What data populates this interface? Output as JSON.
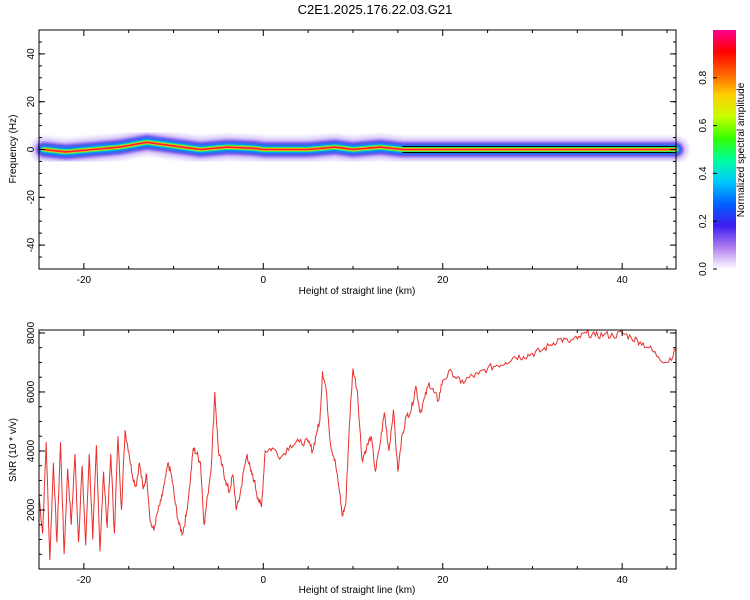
{
  "title": "C2E1.2025.176.22.03.G21",
  "chart_data": [
    {
      "type": "heatmap",
      "xlabel": "Height of straight line (km)",
      "ylabel": "Frequency (Hz)",
      "xlim": [
        -25,
        46
      ],
      "ylim": [
        -50,
        50
      ],
      "x_ticks": [
        -20,
        0,
        20,
        40
      ],
      "y_ticks": [
        -40,
        -20,
        0,
        20,
        40
      ],
      "colorbar": {
        "label": "Normalized spectral amplitude",
        "range": [
          0,
          1
        ],
        "ticks": [
          "0.0",
          "0.2",
          "0.4",
          "0.6",
          "0.8"
        ],
        "colors": [
          "#ffffff",
          "#b07cf0",
          "#3d1cf0",
          "#0060ff",
          "#00c8ff",
          "#00ffa0",
          "#30ff00",
          "#c8ff00",
          "#ffd000",
          "#ff6000",
          "#ff0000",
          "#ff0090"
        ]
      },
      "band": {
        "center_freq_hz": [
          [
            -24.5,
            0
          ],
          [
            -22,
            -1
          ],
          [
            -19,
            0
          ],
          [
            -16,
            1
          ],
          [
            -13,
            3
          ],
          [
            -10,
            1.5
          ],
          [
            -7,
            0
          ],
          [
            -4,
            1
          ],
          [
            -1,
            0.5
          ],
          [
            0,
            0
          ],
          [
            5,
            0
          ],
          [
            8,
            1
          ],
          [
            10,
            0
          ],
          [
            13,
            1
          ],
          [
            15.5,
            0
          ],
          [
            46,
            0
          ]
        ]
      }
    },
    {
      "type": "line",
      "xlabel": "Height of straight line (km)",
      "ylabel": "SNR (10 * v/v)",
      "xlim": [
        -25,
        46
      ],
      "ylim": [
        0,
        8100
      ],
      "x_ticks": [
        -20,
        0,
        20,
        40
      ],
      "y_ticks": [
        2000,
        4000,
        6000,
        8000
      ],
      "series": [
        {
          "color": "#e8312f",
          "x": [
            -25,
            -24.6,
            -24.2,
            -23.8,
            -23.4,
            -23,
            -22.6,
            -22.2,
            -21.8,
            -21.4,
            -21,
            -20.6,
            -20.2,
            -19.8,
            -19.4,
            -19,
            -18.6,
            -18.2,
            -17.8,
            -17.4,
            -17,
            -16.6,
            -16.2,
            -15.8,
            -15.4,
            -15,
            -14.6,
            -14.2,
            -13.8,
            -13.4,
            -13,
            -12.6,
            -12.2,
            -11.8,
            -11.4,
            -11,
            -10.6,
            -10.2,
            -9.8,
            -9.4,
            -9,
            -8.6,
            -8.2,
            -7.8,
            -7.4,
            -7,
            -6.6,
            -6.2,
            -5.8,
            -5.4,
            -5,
            -4.6,
            -4.2,
            -3.8,
            -3.4,
            -3,
            -2.6,
            -2.2,
            -1.8,
            -1.4,
            -1,
            -0.6,
            -0.2,
            0.2,
            1,
            2,
            3,
            4,
            5,
            5.5,
            6,
            6.3,
            6.6,
            7,
            7.5,
            8,
            8.5,
            8.8,
            9.2,
            9.6,
            10,
            10.5,
            11,
            11.5,
            12,
            12.5,
            13,
            13.5,
            14,
            14.5,
            15,
            15.5,
            16,
            16.5,
            17,
            17.5,
            18,
            18.5,
            19,
            19.5,
            20,
            21,
            22,
            23,
            24,
            25,
            26,
            27,
            28,
            29,
            30,
            31,
            32,
            33,
            34,
            35,
            36,
            37,
            38,
            39,
            40,
            41,
            42,
            43,
            44,
            45,
            46
          ],
          "y": [
            2500,
            1200,
            4300,
            300,
            3600,
            900,
            4300,
            500,
            3400,
            1500,
            3900,
            900,
            3500,
            800,
            3900,
            1000,
            4200,
            600,
            3300,
            1400,
            3900,
            1200,
            4500,
            2000,
            4700,
            4000,
            3200,
            2800,
            3600,
            2700,
            3200,
            1600,
            1300,
            1900,
            2300,
            2900,
            3600,
            3100,
            2200,
            1500,
            1200,
            1800,
            2800,
            4100,
            3900,
            3600,
            1500,
            2500,
            3500,
            6000,
            4000,
            3500,
            3000,
            2600,
            3200,
            2000,
            2500,
            3300,
            3900,
            3300,
            3000,
            2400,
            2100,
            4000,
            4100,
            3800,
            4200,
            4300,
            4300,
            4000,
            4700,
            5000,
            6700,
            6100,
            4200,
            3700,
            2600,
            1800,
            2200,
            4900,
            6800,
            6000,
            3700,
            4100,
            4500,
            3300,
            4200,
            5300,
            4000,
            5400,
            3300,
            4600,
            5200,
            5400,
            6200,
            5300,
            5800,
            6300,
            6000,
            5700,
            6400,
            6700,
            6300,
            6500,
            6600,
            6800,
            6900,
            7000,
            7200,
            7200,
            7300,
            7400,
            7600,
            7800,
            7700,
            7800,
            8000,
            7900,
            7950,
            7900,
            8000,
            7850,
            7700,
            7500,
            7200,
            7000,
            7400
          ]
        }
      ]
    }
  ]
}
